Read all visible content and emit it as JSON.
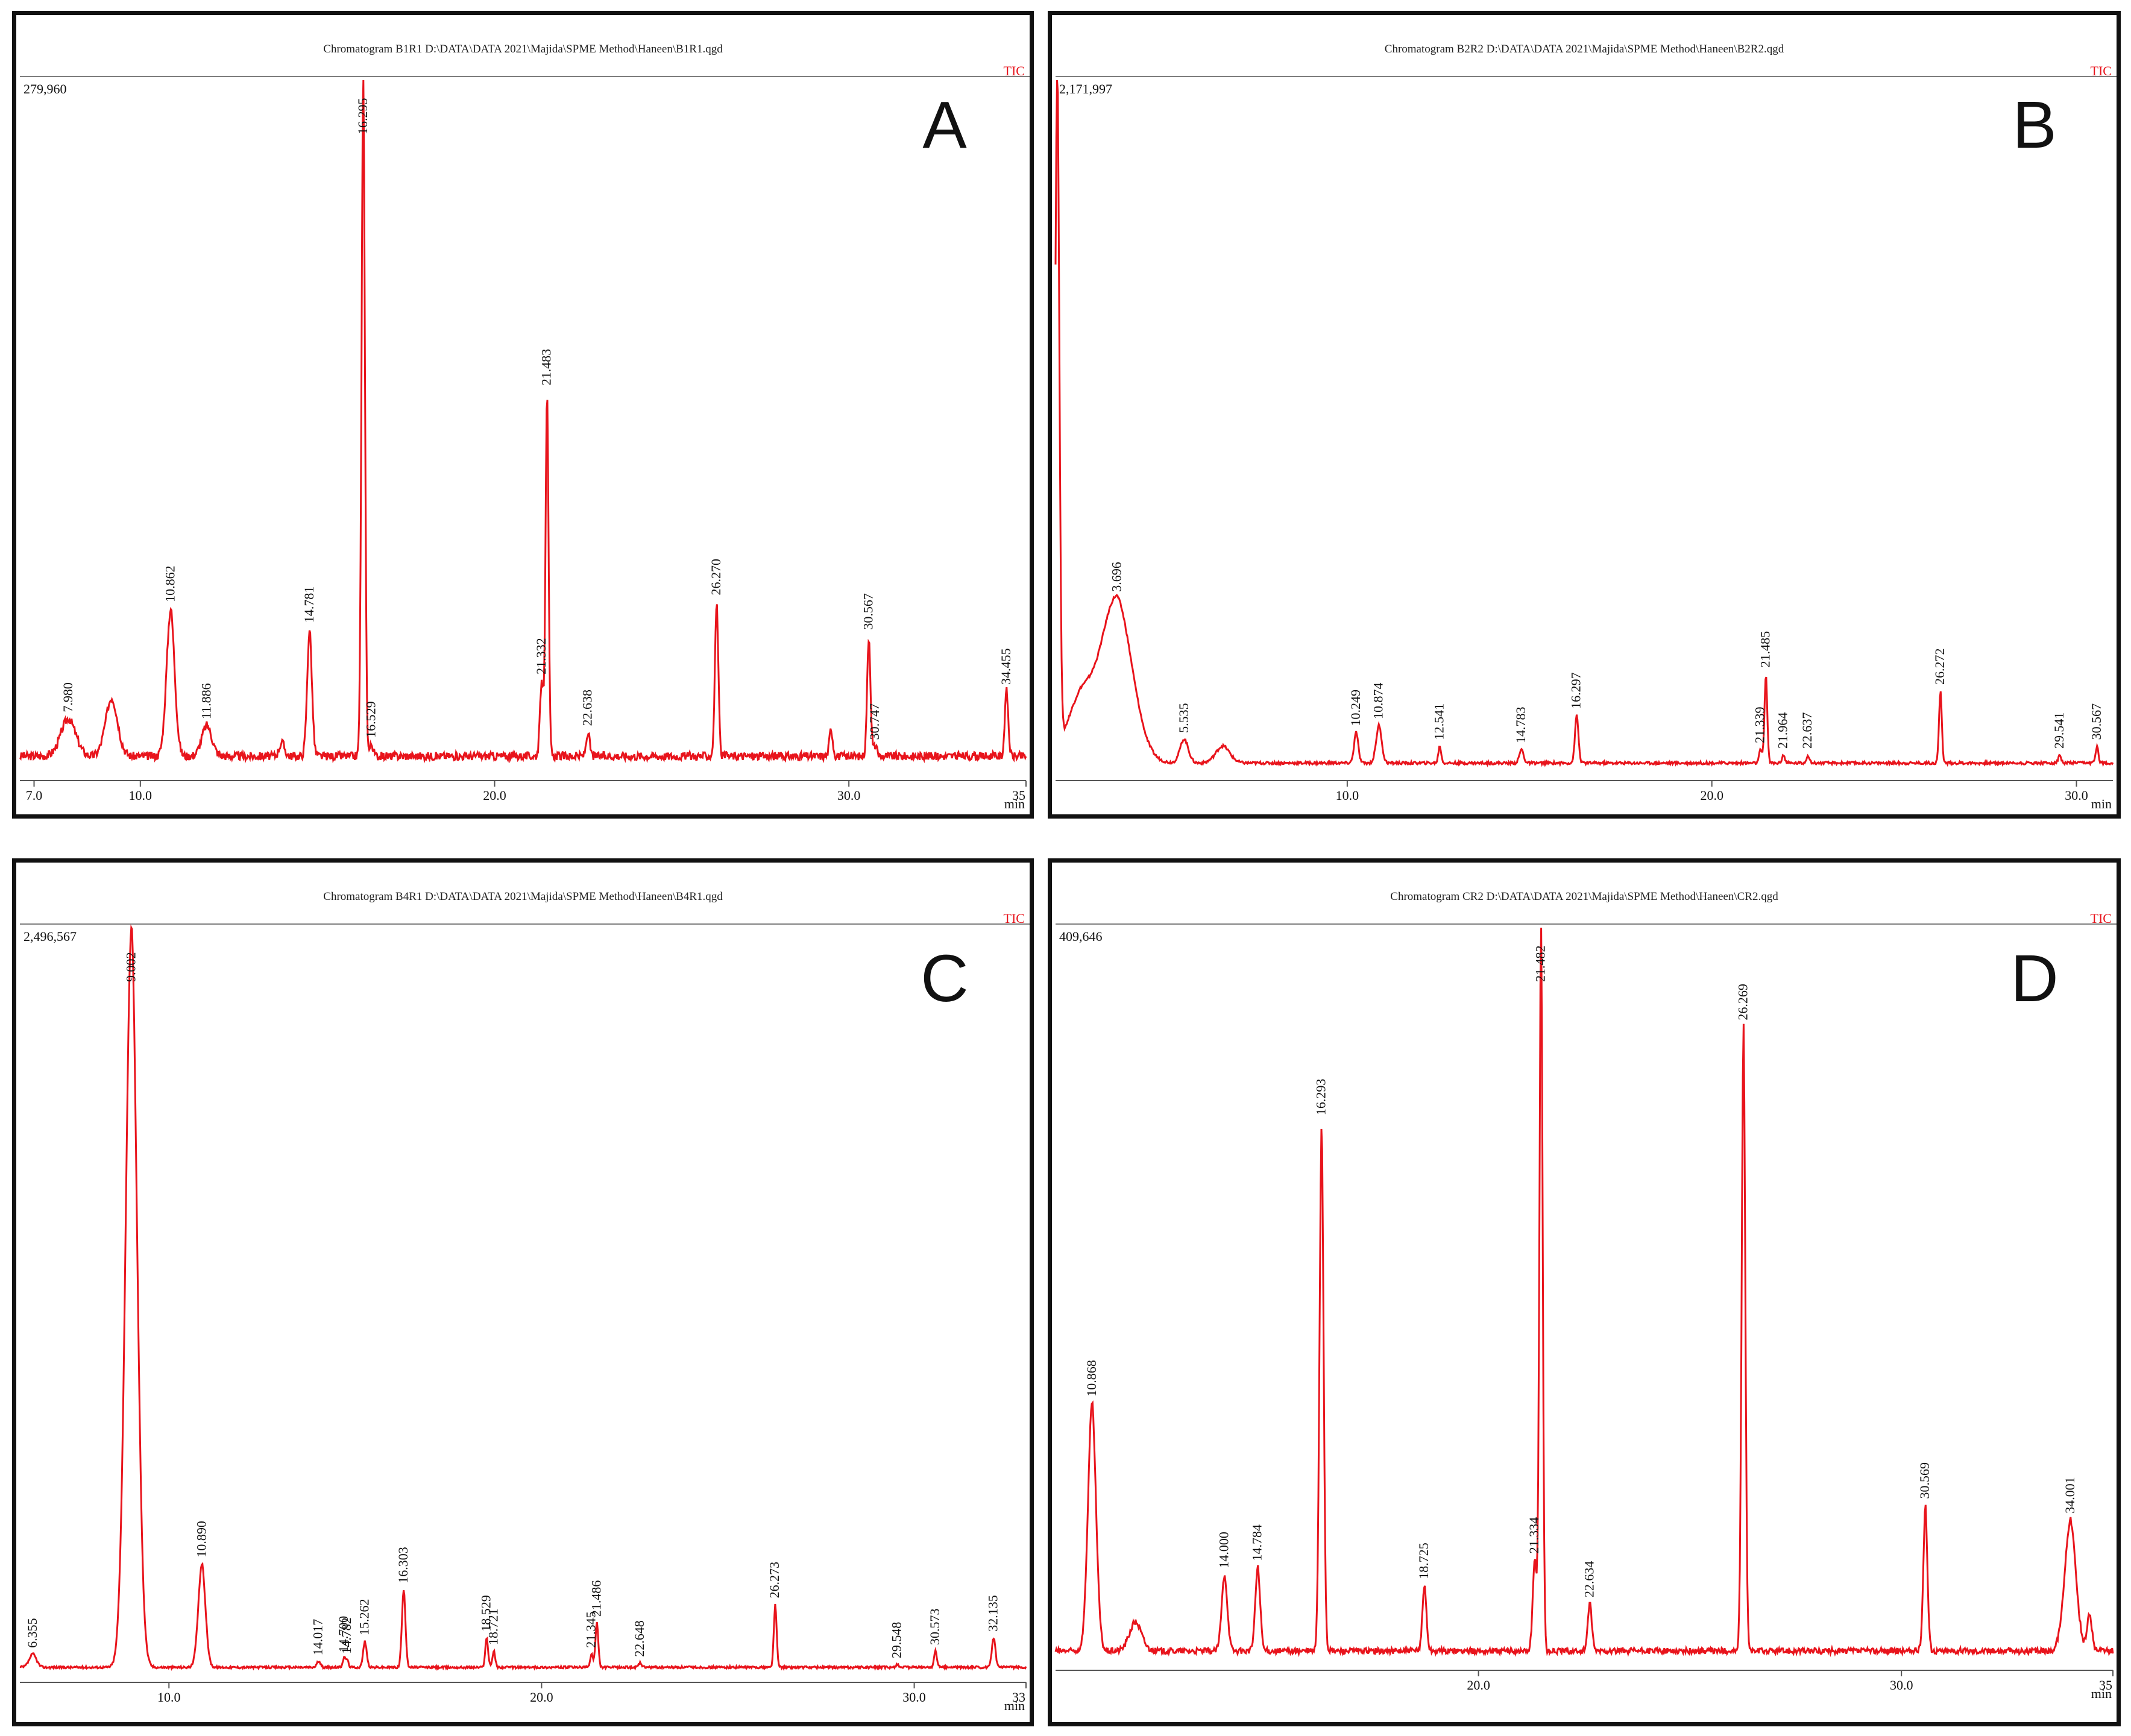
{
  "colors": {
    "trace": "#e8141c",
    "frame": "#111111",
    "tic": "#e8141c",
    "axis": "#555555"
  },
  "chart_data": [
    {
      "type": "line",
      "panel_letter": "A",
      "title": "Chromatogram B1R1 D:\\DATA\\DATA 2021\\Majida\\SPME Method\\Haneen\\B1R1.qgd",
      "series_label": "TIC",
      "max_intensity_label": "279,960",
      "xlabel": "min",
      "xlim": [
        6.6,
        35.0
      ],
      "ylim": [
        0,
        279960
      ],
      "tick_labels": [
        "7.0",
        "10.0",
        "20.0",
        "30.0",
        "35"
      ],
      "tick_values": [
        7.0,
        10.0,
        20.0,
        30.0,
        35.0
      ],
      "baseline": 0.018,
      "noise": 0.006,
      "peaks": [
        {
          "rt": 7.98,
          "h": 0.055,
          "w": 0.22,
          "label": "7.980"
        },
        {
          "rt": 9.2,
          "h": 0.085,
          "w": 0.18,
          "label": ""
        },
        {
          "rt": 10.862,
          "h": 0.215,
          "w": 0.12,
          "label": "10.862"
        },
        {
          "rt": 11.886,
          "h": 0.045,
          "w": 0.15,
          "label": "11.886"
        },
        {
          "rt": 14.0,
          "h": 0.02,
          "w": 0.08,
          "label": ""
        },
        {
          "rt": 14.781,
          "h": 0.185,
          "w": 0.07,
          "label": "14.781"
        },
        {
          "rt": 16.295,
          "h": 1.0,
          "w": 0.05,
          "label": "16.295"
        },
        {
          "rt": 16.529,
          "h": 0.018,
          "w": 0.05,
          "label": "16.529"
        },
        {
          "rt": 21.332,
          "h": 0.11,
          "w": 0.05,
          "label": "21.332"
        },
        {
          "rt": 21.483,
          "h": 0.53,
          "w": 0.045,
          "label": "21.483"
        },
        {
          "rt": 22.638,
          "h": 0.035,
          "w": 0.05,
          "label": "22.638"
        },
        {
          "rt": 26.27,
          "h": 0.225,
          "w": 0.05,
          "label": "26.270"
        },
        {
          "rt": 29.5,
          "h": 0.04,
          "w": 0.05,
          "label": ""
        },
        {
          "rt": 30.567,
          "h": 0.175,
          "w": 0.05,
          "label": "30.567"
        },
        {
          "rt": 30.747,
          "h": 0.015,
          "w": 0.05,
          "label": "30.747"
        },
        {
          "rt": 34.455,
          "h": 0.095,
          "w": 0.05,
          "label": "34.455"
        }
      ]
    },
    {
      "type": "line",
      "panel_letter": "B",
      "title": "Chromatogram B2R2 D:\\DATA\\DATA 2021\\Majida\\SPME Method\\Haneen\\B2R2.qgd",
      "series_label": "TIC",
      "max_intensity_label": "2,171,997",
      "xlabel": "min",
      "xlim": [
        2.0,
        31.0
      ],
      "ylim": [
        0,
        2171997
      ],
      "tick_labels": [
        "10.0",
        "20.0",
        "30.0"
      ],
      "tick_values": [
        10.0,
        20.0,
        30.0
      ],
      "baseline": 0.008,
      "noise": 0.002,
      "peaks": [
        {
          "rt": 2.05,
          "h": 1.0,
          "w": 0.06,
          "label": ""
        },
        {
          "rt": 2.7,
          "h": 0.09,
          "w": 0.4,
          "label": ""
        },
        {
          "rt": 3.696,
          "h": 0.24,
          "w": 0.45,
          "label": "3.696"
        },
        {
          "rt": 5.535,
          "h": 0.035,
          "w": 0.12,
          "label": "5.535"
        },
        {
          "rt": 6.6,
          "h": 0.025,
          "w": 0.2,
          "label": ""
        },
        {
          "rt": 10.249,
          "h": 0.045,
          "w": 0.06,
          "label": "10.249"
        },
        {
          "rt": 10.874,
          "h": 0.055,
          "w": 0.08,
          "label": "10.874"
        },
        {
          "rt": 12.541,
          "h": 0.025,
          "w": 0.04,
          "label": "12.541"
        },
        {
          "rt": 14.783,
          "h": 0.02,
          "w": 0.06,
          "label": "14.783"
        },
        {
          "rt": 16.297,
          "h": 0.07,
          "w": 0.05,
          "label": "16.297"
        },
        {
          "rt": 21.339,
          "h": 0.02,
          "w": 0.04,
          "label": "21.339"
        },
        {
          "rt": 21.485,
          "h": 0.13,
          "w": 0.04,
          "label": "21.485"
        },
        {
          "rt": 21.964,
          "h": 0.012,
          "w": 0.04,
          "label": "21.964"
        },
        {
          "rt": 22.637,
          "h": 0.012,
          "w": 0.04,
          "label": "22.637"
        },
        {
          "rt": 26.272,
          "h": 0.105,
          "w": 0.04,
          "label": "26.272"
        },
        {
          "rt": 29.541,
          "h": 0.012,
          "w": 0.04,
          "label": "29.541"
        },
        {
          "rt": 30.567,
          "h": 0.025,
          "w": 0.04,
          "label": "30.567"
        }
      ]
    },
    {
      "type": "line",
      "panel_letter": "C",
      "title": "Chromatogram B4R1 D:\\DATA\\DATA 2021\\Majida\\SPME Method\\Haneen\\B4R1.qgd",
      "series_label": "TIC",
      "max_intensity_label": "2,496,567",
      "xlabel": "min",
      "xlim": [
        6.0,
        33.0
      ],
      "ylim": [
        0,
        2496567
      ],
      "tick_labels": [
        "10.0",
        "20.0",
        "30.0",
        "33"
      ],
      "tick_values": [
        10.0,
        20.0,
        30.0,
        33.0
      ],
      "baseline": 0.004,
      "noise": 0.0015,
      "peaks": [
        {
          "rt": 6.355,
          "h": 0.018,
          "w": 0.1,
          "label": "6.355"
        },
        {
          "rt": 9.002,
          "h": 1.0,
          "w": 0.16,
          "label": "9.002"
        },
        {
          "rt": 10.89,
          "h": 0.14,
          "w": 0.1,
          "label": "10.890"
        },
        {
          "rt": 14.017,
          "h": 0.008,
          "w": 0.05,
          "label": "14.017"
        },
        {
          "rt": 14.7,
          "h": 0.012,
          "w": 0.04,
          "label": "14.700"
        },
        {
          "rt": 14.782,
          "h": 0.01,
          "w": 0.04,
          "label": "14.782"
        },
        {
          "rt": 15.262,
          "h": 0.035,
          "w": 0.05,
          "label": "15.262"
        },
        {
          "rt": 16.303,
          "h": 0.105,
          "w": 0.05,
          "label": "16.303"
        },
        {
          "rt": 18.529,
          "h": 0.04,
          "w": 0.04,
          "label": "18.529"
        },
        {
          "rt": 18.721,
          "h": 0.022,
          "w": 0.04,
          "label": "18.721"
        },
        {
          "rt": 21.345,
          "h": 0.018,
          "w": 0.04,
          "label": "21.345"
        },
        {
          "rt": 21.486,
          "h": 0.06,
          "w": 0.04,
          "label": "21.486"
        },
        {
          "rt": 22.648,
          "h": 0.006,
          "w": 0.04,
          "label": "22.648"
        },
        {
          "rt": 26.273,
          "h": 0.085,
          "w": 0.04,
          "label": "26.273"
        },
        {
          "rt": 29.548,
          "h": 0.004,
          "w": 0.04,
          "label": "29.548"
        },
        {
          "rt": 30.573,
          "h": 0.022,
          "w": 0.04,
          "label": "30.573"
        },
        {
          "rt": 32.135,
          "h": 0.04,
          "w": 0.05,
          "label": "32.135"
        }
      ]
    },
    {
      "type": "line",
      "panel_letter": "D",
      "title": "Chromatogram CR2 D:\\DATA\\DATA 2021\\Majida\\SPME Method\\Haneen\\CR2.qgd",
      "series_label": "TIC",
      "max_intensity_label": "409,646",
      "xlabel": "min",
      "xlim": [
        10.0,
        35.0
      ],
      "ylim": [
        0,
        409646
      ],
      "tick_labels": [
        "20.0",
        "30.0",
        "35"
      ],
      "tick_values": [
        20.0,
        30.0,
        35.0
      ],
      "baseline": 0.01,
      "noise": 0.004,
      "peaks": [
        {
          "rt": 10.868,
          "h": 0.34,
          "w": 0.1,
          "label": "10.868"
        },
        {
          "rt": 11.9,
          "h": 0.04,
          "w": 0.15,
          "label": ""
        },
        {
          "rt": 14.0,
          "h": 0.105,
          "w": 0.07,
          "label": "14.000"
        },
        {
          "rt": 14.784,
          "h": 0.115,
          "w": 0.06,
          "label": "14.784"
        },
        {
          "rt": 16.293,
          "h": 0.725,
          "w": 0.05,
          "label": "16.293"
        },
        {
          "rt": 18.725,
          "h": 0.09,
          "w": 0.05,
          "label": "18.725"
        },
        {
          "rt": 21.334,
          "h": 0.125,
          "w": 0.05,
          "label": "21.334"
        },
        {
          "rt": 21.482,
          "h": 1.0,
          "w": 0.04,
          "label": "21.482"
        },
        {
          "rt": 22.634,
          "h": 0.065,
          "w": 0.05,
          "label": "22.634"
        },
        {
          "rt": 26.269,
          "h": 0.855,
          "w": 0.045,
          "label": "26.269"
        },
        {
          "rt": 30.569,
          "h": 0.2,
          "w": 0.05,
          "label": "30.569"
        },
        {
          "rt": 34.001,
          "h": 0.18,
          "w": 0.14,
          "label": "34.001"
        },
        {
          "rt": 34.45,
          "h": 0.05,
          "w": 0.06,
          "label": ""
        }
      ]
    }
  ]
}
